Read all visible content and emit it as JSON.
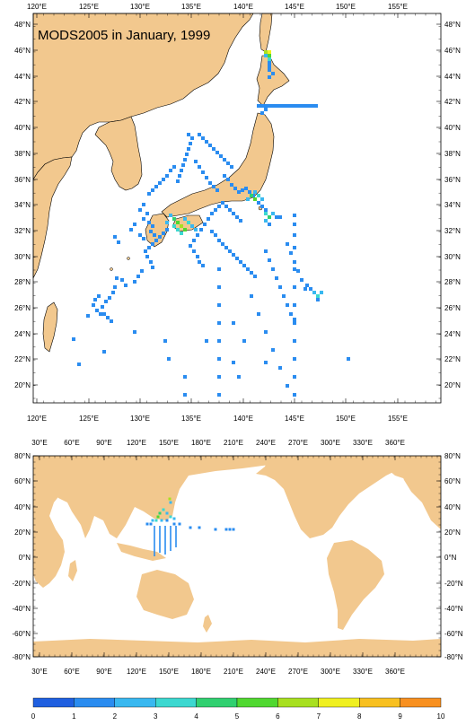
{
  "title": "MODS2005 in January, 1999",
  "colors": {
    "land": "#f2c88e",
    "ocean": "#ffffff",
    "frame": "#000000"
  },
  "top_map": {
    "lon_labels": [
      "120°E",
      "125°E",
      "130°E",
      "135°E",
      "140°E",
      "145°E",
      "150°E",
      "155°E"
    ],
    "lat_labels": [
      "48°N",
      "46°N",
      "44°N",
      "42°N",
      "40°N",
      "38°N",
      "36°N",
      "34°N",
      "32°N",
      "30°N",
      "28°N",
      "26°N",
      "24°N",
      "22°N",
      "20°N"
    ]
  },
  "bottom_map": {
    "lon_labels": [
      "30°E",
      "60°E",
      "90°E",
      "120°E",
      "150°E",
      "180°E",
      "210°E",
      "240°E",
      "270°E",
      "300°E",
      "330°E",
      "360°E"
    ],
    "lat_labels": [
      "80°N",
      "60°N",
      "40°N",
      "20°N",
      "0°N",
      "-20°N",
      "-40°N",
      "-60°N",
      "-80°N"
    ]
  },
  "colorbar": {
    "labels": [
      "0",
      "1",
      "2",
      "3",
      "4",
      "5",
      "6",
      "7",
      "8",
      "9",
      "10"
    ],
    "colors": [
      "#1f5fe0",
      "#2a8cf0",
      "#39b8f0",
      "#3cd8d0",
      "#30d070",
      "#50d830",
      "#a8e020",
      "#f0f020",
      "#f8c020",
      "#f89020",
      "#f05020"
    ]
  },
  "observations": {
    "counts_range": [
      0,
      10
    ],
    "hotspots": [
      {
        "lon": 141.2,
        "lat": 45.8,
        "count": 7
      },
      {
        "lon": 133.2,
        "lat": 32.1,
        "count": 6
      },
      {
        "lon": 140.0,
        "lat": 34.6,
        "count": 5
      },
      {
        "lon": 141.3,
        "lat": 33.0,
        "count": 4
      },
      {
        "lon": 146.8,
        "lat": 26.9,
        "count": 3
      }
    ]
  }
}
